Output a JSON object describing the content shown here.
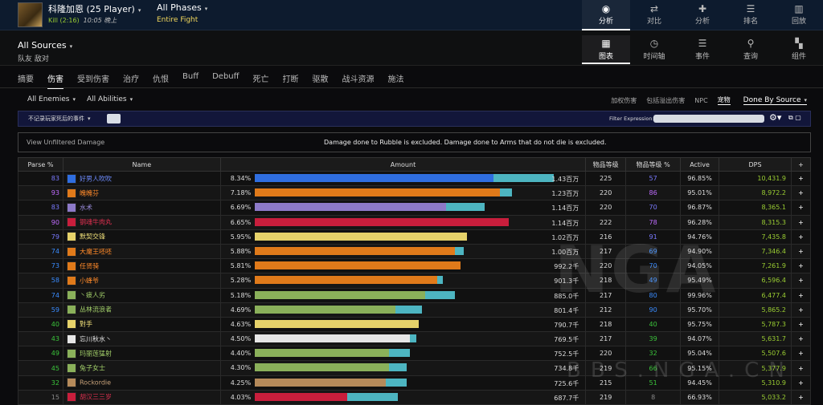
{
  "header": {
    "boss_name": "科隆加恩 (25 Player)",
    "kill": "Kill (2:16)",
    "time": "10:05 晚上",
    "phase": "All Phases",
    "phase_sub": "Entire Fight",
    "nav": [
      {
        "label": "分析",
        "icon": "eye-icon",
        "active": true
      },
      {
        "label": "对比",
        "icon": "compare-icon"
      },
      {
        "label": "分析",
        "icon": "puzzle-icon"
      },
      {
        "label": "排名",
        "icon": "ranking-icon"
      },
      {
        "label": "回放",
        "icon": "replay-icon"
      }
    ]
  },
  "sources": {
    "title": "All Sources",
    "sub": "队友  敌对",
    "nav": [
      {
        "label": "图表",
        "icon": "table-icon",
        "active": true
      },
      {
        "label": "时间轴",
        "icon": "clock-icon"
      },
      {
        "label": "事件",
        "icon": "list-icon"
      },
      {
        "label": "查询",
        "icon": "pin-icon"
      },
      {
        "label": "组件",
        "icon": "component-icon"
      }
    ]
  },
  "tabs": [
    "摘要",
    "伤害",
    "受到伤害",
    "治疗",
    "仇恨",
    "Buff",
    "Debuff",
    "死亡",
    "打断",
    "驱散",
    "战斗资源",
    "施法"
  ],
  "filters": {
    "enemies": "All Enemies",
    "abilities": "All Abilities",
    "right": [
      "加权伤害",
      "包括溢出伤害",
      "NPC",
      "宠物"
    ],
    "done_by": "Done By Source"
  },
  "options": {
    "label": "不记录玩家死后的事件",
    "filter_label": "Filter Expression:"
  },
  "notice": {
    "view_unfiltered": "View Unfiltered Damage",
    "message": "Damage done to Rubble is excluded. Damage done to Arms that do not die is excluded."
  },
  "columns": [
    "Parse %",
    "Name",
    "Amount",
    "物品等级",
    "物品等级 %",
    "Active",
    "DPS",
    "+"
  ],
  "rows": [
    {
      "parse": "83",
      "name": "好男人吹吹",
      "color": "#2f6ee0",
      "pct": "8.34%",
      "fill": 0.8,
      "ext": 0.2,
      "val": "1.43百万",
      "ilvl": "225",
      "ilvlp": "57",
      "active": "96.85%",
      "dps": "10,431.9",
      "pc": "#7a7aff",
      "nc": "#6e8cff"
    },
    {
      "parse": "93",
      "name": "魄魄芬",
      "color": "#e07a1a",
      "pct": "7.18%",
      "fill": 0.82,
      "ext": 0.04,
      "val": "1.23百万",
      "ilvl": "220",
      "ilvlp": "86",
      "active": "95.01%",
      "dps": "8,972.2",
      "pc": "#c06cff",
      "nc": "#ff8a2a"
    },
    {
      "parse": "83",
      "name": "水术",
      "color": "#8d7ac8",
      "pct": "6.69%",
      "fill": 0.64,
      "ext": 0.13,
      "val": "1.14百万",
      "ilvl": "220",
      "ilvlp": "70",
      "active": "96.87%",
      "dps": "8,365.1",
      "pc": "#7a7aff",
      "nc": "#9d8ee0"
    },
    {
      "parse": "90",
      "name": "钢魂牛肉丸",
      "color": "#c81e3c",
      "pct": "6.65%",
      "fill": 0.85,
      "ext": 0.0,
      "val": "1.14百万",
      "ilvl": "222",
      "ilvlp": "78",
      "active": "96.28%",
      "dps": "8,315.3",
      "pc": "#c06cff",
      "nc": "#e03050"
    },
    {
      "parse": "79",
      "name": "默契交锋",
      "color": "#e6d26a",
      "pct": "5.95%",
      "fill": 0.71,
      "ext": 0.0,
      "val": "1.02百万",
      "ilvl": "216",
      "ilvlp": "91",
      "active": "94.76%",
      "dps": "7,435.8",
      "pc": "#7a7aff",
      "nc": "#f0e07a"
    },
    {
      "parse": "74",
      "name": "大魔王呸呸",
      "color": "#e07a1a",
      "pct": "5.88%",
      "fill": 0.67,
      "ext": 0.03,
      "val": "1.00百万",
      "ilvl": "217",
      "ilvlp": "69",
      "active": "94.90%",
      "dps": "7,346.4",
      "pc": "#3a8cff",
      "nc": "#ff8a2a"
    },
    {
      "parse": "73",
      "name": "任贤骑",
      "color": "#e07a1a",
      "pct": "5.81%",
      "fill": 0.69,
      "ext": 0.0,
      "val": "992.2千",
      "ilvl": "220",
      "ilvlp": "70",
      "active": "94.05%",
      "dps": "7,261.9",
      "pc": "#3a8cff",
      "nc": "#ff8a2a"
    },
    {
      "parse": "58",
      "name": "小蜂爷",
      "color": "#e07a1a",
      "pct": "5.28%",
      "fill": 0.61,
      "ext": 0.02,
      "val": "901.3千",
      "ilvl": "218",
      "ilvlp": "49",
      "active": "95.49%",
      "dps": "6,596.4",
      "pc": "#3a8cff",
      "nc": "#ff8a2a"
    },
    {
      "parse": "74",
      "name": "丶疲人劣",
      "color": "#8ab05a",
      "pct": "5.18%",
      "fill": 0.57,
      "ext": 0.1,
      "val": "885.0千",
      "ilvl": "217",
      "ilvlp": "80",
      "active": "99.96%",
      "dps": "6,477.4",
      "pc": "#3a8cff",
      "nc": "#a3d06a"
    },
    {
      "parse": "59",
      "name": "丛林流浪者",
      "color": "#8ab05a",
      "pct": "4.69%",
      "fill": 0.47,
      "ext": 0.09,
      "val": "801.4千",
      "ilvl": "212",
      "ilvlp": "90",
      "active": "95.70%",
      "dps": "5,865.2",
      "pc": "#3a8cff",
      "nc": "#a3d06a"
    },
    {
      "parse": "40",
      "name": "對手",
      "color": "#e6d26a",
      "pct": "4.63%",
      "fill": 0.55,
      "ext": 0.0,
      "val": "790.7千",
      "ilvl": "218",
      "ilvlp": "40",
      "active": "95.75%",
      "dps": "5,787.3",
      "pc": "#3bc43b",
      "nc": "#f0e07a"
    },
    {
      "parse": "43",
      "name": "忘川秋水丶",
      "color": "#e6e6e6",
      "pct": "4.50%",
      "fill": 0.52,
      "ext": 0.02,
      "val": "769.5千",
      "ilvl": "217",
      "ilvlp": "39",
      "active": "94.07%",
      "dps": "5,631.7",
      "pc": "#3bc43b",
      "nc": "#e6e6e6"
    },
    {
      "parse": "49",
      "name": "玛丽莲猛射",
      "color": "#8ab05a",
      "pct": "4.40%",
      "fill": 0.45,
      "ext": 0.07,
      "val": "752.5千",
      "ilvl": "220",
      "ilvlp": "32",
      "active": "95.04%",
      "dps": "5,507.6",
      "pc": "#3bc43b",
      "nc": "#a3d06a"
    },
    {
      "parse": "45",
      "name": "兔子女士",
      "color": "#8ab05a",
      "pct": "4.30%",
      "fill": 0.45,
      "ext": 0.06,
      "val": "734.8千",
      "ilvl": "219",
      "ilvlp": "66",
      "active": "95.15%",
      "dps": "5,377.9",
      "pc": "#3bc43b",
      "nc": "#a3d06a"
    },
    {
      "parse": "32",
      "name": "Rockordie",
      "color": "#b58a5a",
      "pct": "4.25%",
      "fill": 0.44,
      "ext": 0.07,
      "val": "725.6千",
      "ilvl": "215",
      "ilvlp": "51",
      "active": "94.45%",
      "dps": "5,310.9",
      "pc": "#3bc43b",
      "nc": "#c8a27a"
    },
    {
      "parse": "15",
      "name": "胡汉三三岁",
      "color": "#c81e3c",
      "pct": "4.03%",
      "fill": 0.31,
      "ext": 0.17,
      "val": "687.7千",
      "ilvl": "219",
      "ilvlp": "8",
      "active": "66.93%",
      "dps": "5,033.2",
      "pc": "#888",
      "nc": "#e03050"
    }
  ],
  "watermark": "NGA",
  "watermark_url": "BBS.NGA.CN"
}
